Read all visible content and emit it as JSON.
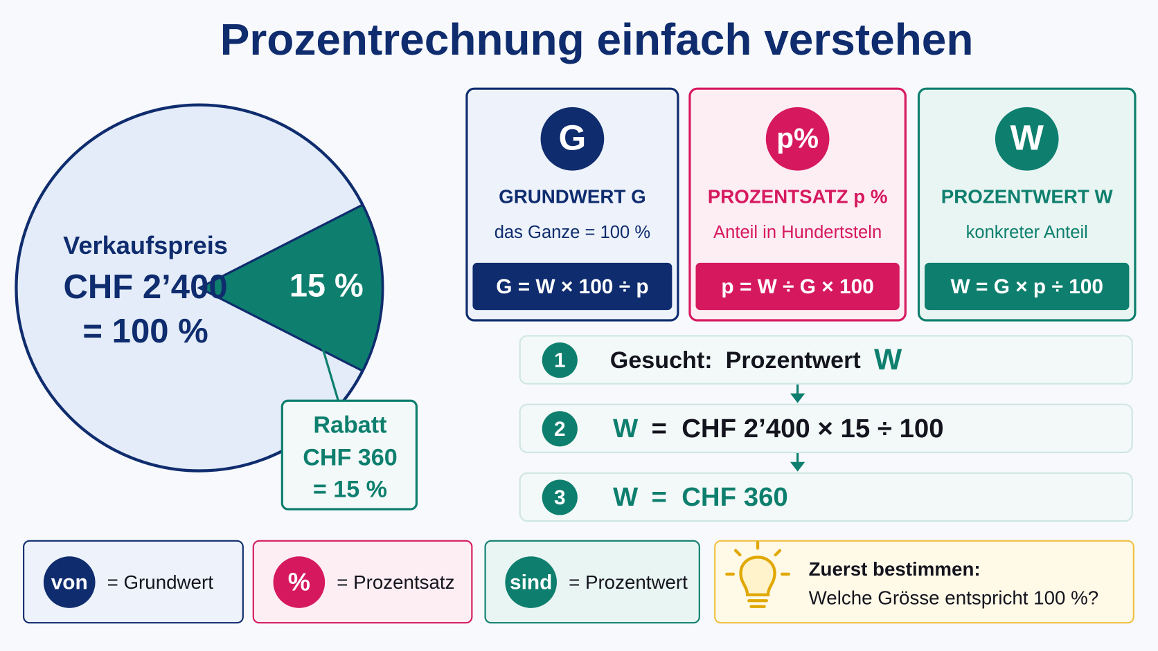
{
  "title": "Prozentrechnung einfach verstehen",
  "pie": {
    "label_lines": [
      "Verkaufspreis",
      "CHF 2’400",
      "= 100 %"
    ],
    "slice_value": 15,
    "slice_label": "15 %",
    "callout": [
      "Rabatt",
      "CHF 360",
      "= 15 %"
    ]
  },
  "cards": [
    {
      "symbol": "G",
      "title": "GRUNDWERT G",
      "subtitle": "das Ganze = 100 %",
      "formula": "G = W × 100 ÷ p"
    },
    {
      "symbol": "p%",
      "title": "PROZENTSATZ p %",
      "subtitle": "Anteil in Hundertsteln",
      "formula": "p = W ÷ G × 100"
    },
    {
      "symbol": "W",
      "title": "PROZENTWERT W",
      "subtitle": "konkreter Anteil",
      "formula": "W = G × p ÷ 100"
    }
  ],
  "steps": [
    {
      "number": "1",
      "segments": [
        "Gesucht:  Prozentwert",
        "W"
      ]
    },
    {
      "number": "2",
      "segments": [
        "W",
        "=  CHF 2’400 × 15 ÷ 100"
      ]
    },
    {
      "number": "3",
      "segments": [
        "W",
        "=  CHF 360"
      ]
    }
  ],
  "legend": [
    {
      "symbol": "von",
      "text": "= Grundwert"
    },
    {
      "symbol": "%",
      "text": "= Prozentsatz"
    },
    {
      "symbol": "sind",
      "text": "= Prozentwert"
    }
  ],
  "tip": [
    "Zuerst bestimmen:",
    "Welche Grösse entspricht 100 %?"
  ]
}
